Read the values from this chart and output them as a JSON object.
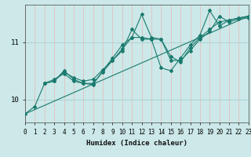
{
  "xlabel": "Humidex (Indice chaleur)",
  "ylabel": "",
  "bg_color": "#cce8e8",
  "line_color": "#1a7a6e",
  "grid_color_v": "#e8b8b8",
  "grid_color_h": "#a8d0d0",
  "series": [
    {
      "x": [
        0,
        1,
        2,
        3,
        4,
        5,
        6,
        7,
        8,
        9,
        10,
        11,
        12,
        13,
        14,
        15,
        16,
        17,
        18,
        19,
        20,
        21,
        22,
        23
      ],
      "y": [
        9.75,
        9.88,
        10.28,
        10.35,
        10.45,
        10.32,
        10.28,
        10.26,
        10.5,
        10.72,
        10.95,
        11.08,
        11.48,
        11.08,
        11.05,
        10.68,
        10.68,
        10.85,
        11.05,
        11.18,
        11.45,
        11.35,
        11.4,
        11.42
      ]
    },
    {
      "x": [
        2,
        3,
        4,
        5,
        6,
        7,
        8,
        9,
        10,
        11,
        12,
        13,
        14,
        15,
        16,
        17,
        18,
        19,
        20,
        21,
        22,
        23
      ],
      "y": [
        10.28,
        10.32,
        10.5,
        10.35,
        10.28,
        10.28,
        10.48,
        10.68,
        10.85,
        11.22,
        11.05,
        11.05,
        10.55,
        10.5,
        10.72,
        10.95,
        11.12,
        11.55,
        11.28,
        11.38,
        11.42,
        11.45
      ]
    },
    {
      "x": [
        2,
        3,
        4,
        5,
        6,
        7,
        8,
        9,
        10,
        11,
        12,
        13,
        14,
        15,
        16,
        17,
        18,
        19,
        20,
        21,
        22,
        23
      ],
      "y": [
        10.28,
        10.32,
        10.48,
        10.38,
        10.32,
        10.35,
        10.52,
        10.68,
        10.88,
        11.08,
        11.08,
        11.05,
        11.05,
        10.75,
        10.65,
        10.9,
        11.08,
        11.22,
        11.35,
        11.38,
        11.42,
        11.45
      ]
    },
    {
      "x": [
        0,
        23
      ],
      "y": [
        9.75,
        11.45
      ],
      "style": "straight"
    }
  ],
  "xlim": [
    0,
    23
  ],
  "ylim": [
    9.6,
    11.65
  ],
  "yticks": [
    10,
    11
  ],
  "xticks": [
    0,
    1,
    2,
    3,
    4,
    5,
    6,
    7,
    8,
    9,
    10,
    11,
    12,
    13,
    14,
    15,
    16,
    17,
    18,
    19,
    20,
    21,
    22,
    23
  ],
  "marker": "D",
  "marker_size": 2.0,
  "linewidth": 0.8,
  "font_size_label": 6.5,
  "font_size_tick": 5.5
}
